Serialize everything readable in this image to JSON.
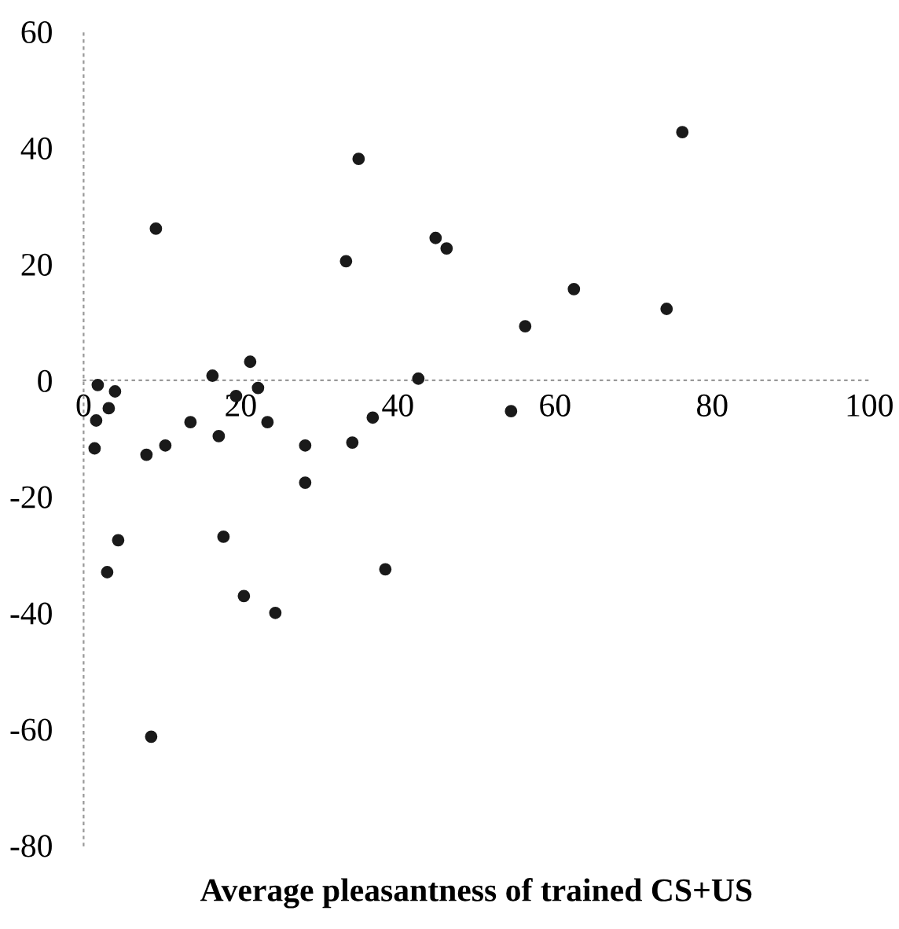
{
  "chart_data": {
    "type": "scatter",
    "xlabel": "Average pleasantness of trained CS+US",
    "x": [
      1.8,
      1.6,
      3.2,
      4,
      1.4,
      4.4,
      3,
      8,
      9.2,
      10.4,
      13.6,
      16.4,
      17.2,
      17.8,
      19.4,
      21.2,
      22.2,
      23.4,
      20.4,
      24.4,
      28.2,
      28.2,
      33.4,
      35,
      34.2,
      36.8,
      38.4,
      42.6,
      44.8,
      46.2,
      54.4,
      56.2,
      62.4,
      74.2,
      76.2,
      8.6
    ],
    "values": [
      -0.8,
      -6.9,
      -4.8,
      -1.9,
      -11.7,
      -27.5,
      -33,
      -12.8,
      26.1,
      -11.2,
      -7.2,
      0.8,
      -9.6,
      -26.9,
      -2.7,
      3.2,
      -1.3,
      -7.2,
      -37.1,
      -40,
      -11.2,
      -17.6,
      20.5,
      38.1,
      -10.7,
      -6.4,
      -32.5,
      0.3,
      24.5,
      22.7,
      -5.3,
      9.3,
      15.7,
      12.3,
      42.7,
      -61.3
    ],
    "color": "#1a1a1a",
    "marker": "circle",
    "xlim": [
      0,
      100
    ],
    "ylim": [
      -80,
      60
    ],
    "xticks": [
      0,
      20,
      40,
      60,
      80,
      100
    ],
    "yticks": [
      -80,
      -60,
      -40,
      -20,
      0,
      20,
      40,
      60
    ],
    "legend": false
  }
}
